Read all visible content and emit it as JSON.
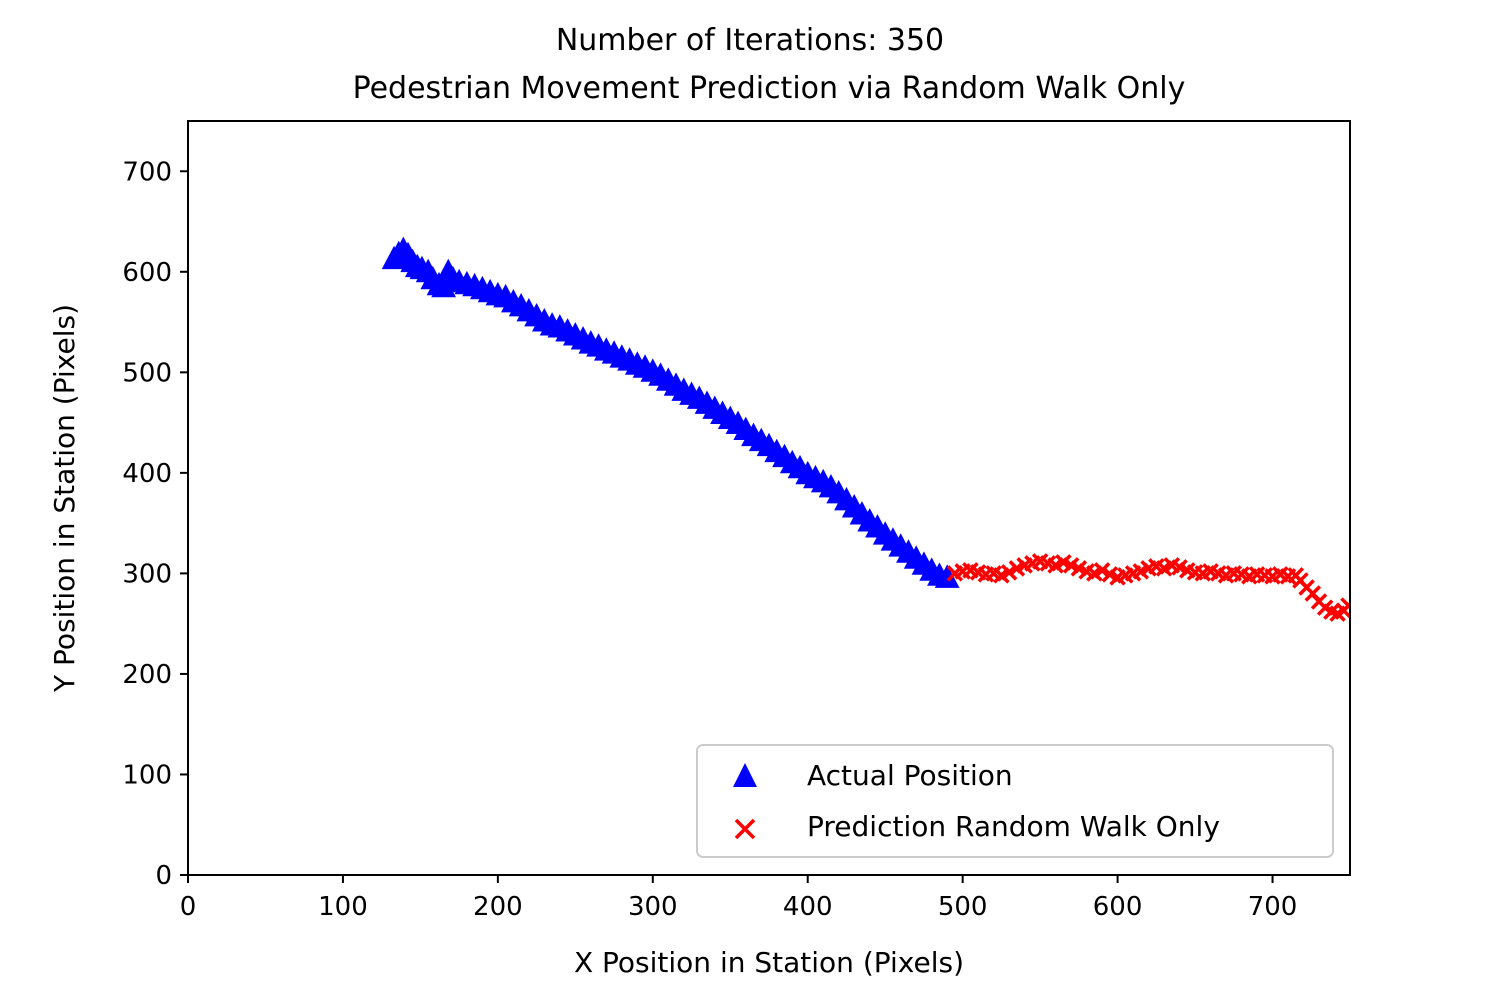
{
  "chart_data": {
    "type": "scatter",
    "title_line1": "Number of Iterations: 350",
    "title_line2": "Pedestrian Movement Prediction via Random Walk Only",
    "xlabel": "X Position in Station (Pixels)",
    "ylabel": "Y Position in Station (Pixels)",
    "xlim": [
      0,
      750
    ],
    "ylim": [
      0,
      750
    ],
    "xticks": [
      "0",
      "100",
      "200",
      "300",
      "400",
      "500",
      "600",
      "700"
    ],
    "yticks": [
      "0",
      "100",
      "200",
      "300",
      "400",
      "500",
      "600",
      "700"
    ],
    "grid": false,
    "legend_position": "lower-right",
    "series": [
      {
        "name": "Actual Position",
        "marker": "triangle",
        "color": "#0000ff",
        "points": [
          [
            133,
            613
          ],
          [
            136,
            618
          ],
          [
            139,
            622
          ],
          [
            142,
            617
          ],
          [
            145,
            610
          ],
          [
            148,
            605
          ],
          [
            151,
            603
          ],
          [
            155,
            600
          ],
          [
            158,
            593
          ],
          [
            162,
            587
          ],
          [
            165,
            585
          ],
          [
            168,
            600
          ],
          [
            171,
            593
          ],
          [
            175,
            590
          ],
          [
            180,
            588
          ],
          [
            185,
            586
          ],
          [
            190,
            583
          ],
          [
            195,
            580
          ],
          [
            200,
            577
          ],
          [
            205,
            575
          ],
          [
            210,
            570
          ],
          [
            215,
            566
          ],
          [
            220,
            561
          ],
          [
            225,
            556
          ],
          [
            230,
            551
          ],
          [
            235,
            547
          ],
          [
            240,
            545
          ],
          [
            245,
            541
          ],
          [
            250,
            537
          ],
          [
            255,
            533
          ],
          [
            260,
            529
          ],
          [
            265,
            526
          ],
          [
            270,
            522
          ],
          [
            275,
            519
          ],
          [
            280,
            515
          ],
          [
            285,
            512
          ],
          [
            290,
            508
          ],
          [
            295,
            505
          ],
          [
            300,
            501
          ],
          [
            305,
            497
          ],
          [
            310,
            492
          ],
          [
            315,
            487
          ],
          [
            320,
            482
          ],
          [
            325,
            478
          ],
          [
            330,
            474
          ],
          [
            335,
            469
          ],
          [
            340,
            464
          ],
          [
            345,
            459
          ],
          [
            350,
            454
          ],
          [
            355,
            449
          ],
          [
            360,
            443
          ],
          [
            365,
            437
          ],
          [
            370,
            432
          ],
          [
            375,
            427
          ],
          [
            380,
            421
          ],
          [
            385,
            416
          ],
          [
            390,
            410
          ],
          [
            395,
            405
          ],
          [
            400,
            399
          ],
          [
            405,
            395
          ],
          [
            410,
            391
          ],
          [
            415,
            386
          ],
          [
            420,
            380
          ],
          [
            425,
            373
          ],
          [
            430,
            366
          ],
          [
            435,
            359
          ],
          [
            440,
            352
          ],
          [
            445,
            346
          ],
          [
            450,
            339
          ],
          [
            455,
            333
          ],
          [
            460,
            327
          ],
          [
            465,
            321
          ],
          [
            470,
            315
          ],
          [
            475,
            309
          ],
          [
            480,
            303
          ],
          [
            485,
            298
          ],
          [
            490,
            296
          ]
        ]
      },
      {
        "name": "Prediction Random Walk Only",
        "marker": "x",
        "color": "#ff0000",
        "points": [
          [
            495,
            300
          ],
          [
            500,
            302
          ],
          [
            505,
            303
          ],
          [
            510,
            301
          ],
          [
            515,
            299
          ],
          [
            520,
            300
          ],
          [
            525,
            298
          ],
          [
            530,
            301
          ],
          [
            535,
            305
          ],
          [
            540,
            308
          ],
          [
            545,
            310
          ],
          [
            550,
            312
          ],
          [
            555,
            310
          ],
          [
            560,
            308
          ],
          [
            565,
            311
          ],
          [
            570,
            308
          ],
          [
            575,
            305
          ],
          [
            580,
            302
          ],
          [
            585,
            300
          ],
          [
            590,
            303
          ],
          [
            595,
            299
          ],
          [
            600,
            296
          ],
          [
            605,
            298
          ],
          [
            610,
            300
          ],
          [
            615,
            302
          ],
          [
            620,
            305
          ],
          [
            625,
            307
          ],
          [
            630,
            305
          ],
          [
            635,
            308
          ],
          [
            640,
            306
          ],
          [
            645,
            303
          ],
          [
            650,
            301
          ],
          [
            655,
            300
          ],
          [
            660,
            302
          ],
          [
            665,
            300
          ],
          [
            670,
            298
          ],
          [
            675,
            300
          ],
          [
            680,
            299
          ],
          [
            685,
            297
          ],
          [
            690,
            299
          ],
          [
            695,
            298
          ],
          [
            700,
            297
          ],
          [
            705,
            299
          ],
          [
            710,
            297
          ],
          [
            715,
            298
          ],
          [
            718,
            293
          ],
          [
            722,
            286
          ],
          [
            726,
            280
          ],
          [
            730,
            272
          ],
          [
            734,
            266
          ],
          [
            738,
            262
          ],
          [
            742,
            260
          ],
          [
            746,
            263
          ],
          [
            749,
            268
          ]
        ]
      }
    ]
  }
}
